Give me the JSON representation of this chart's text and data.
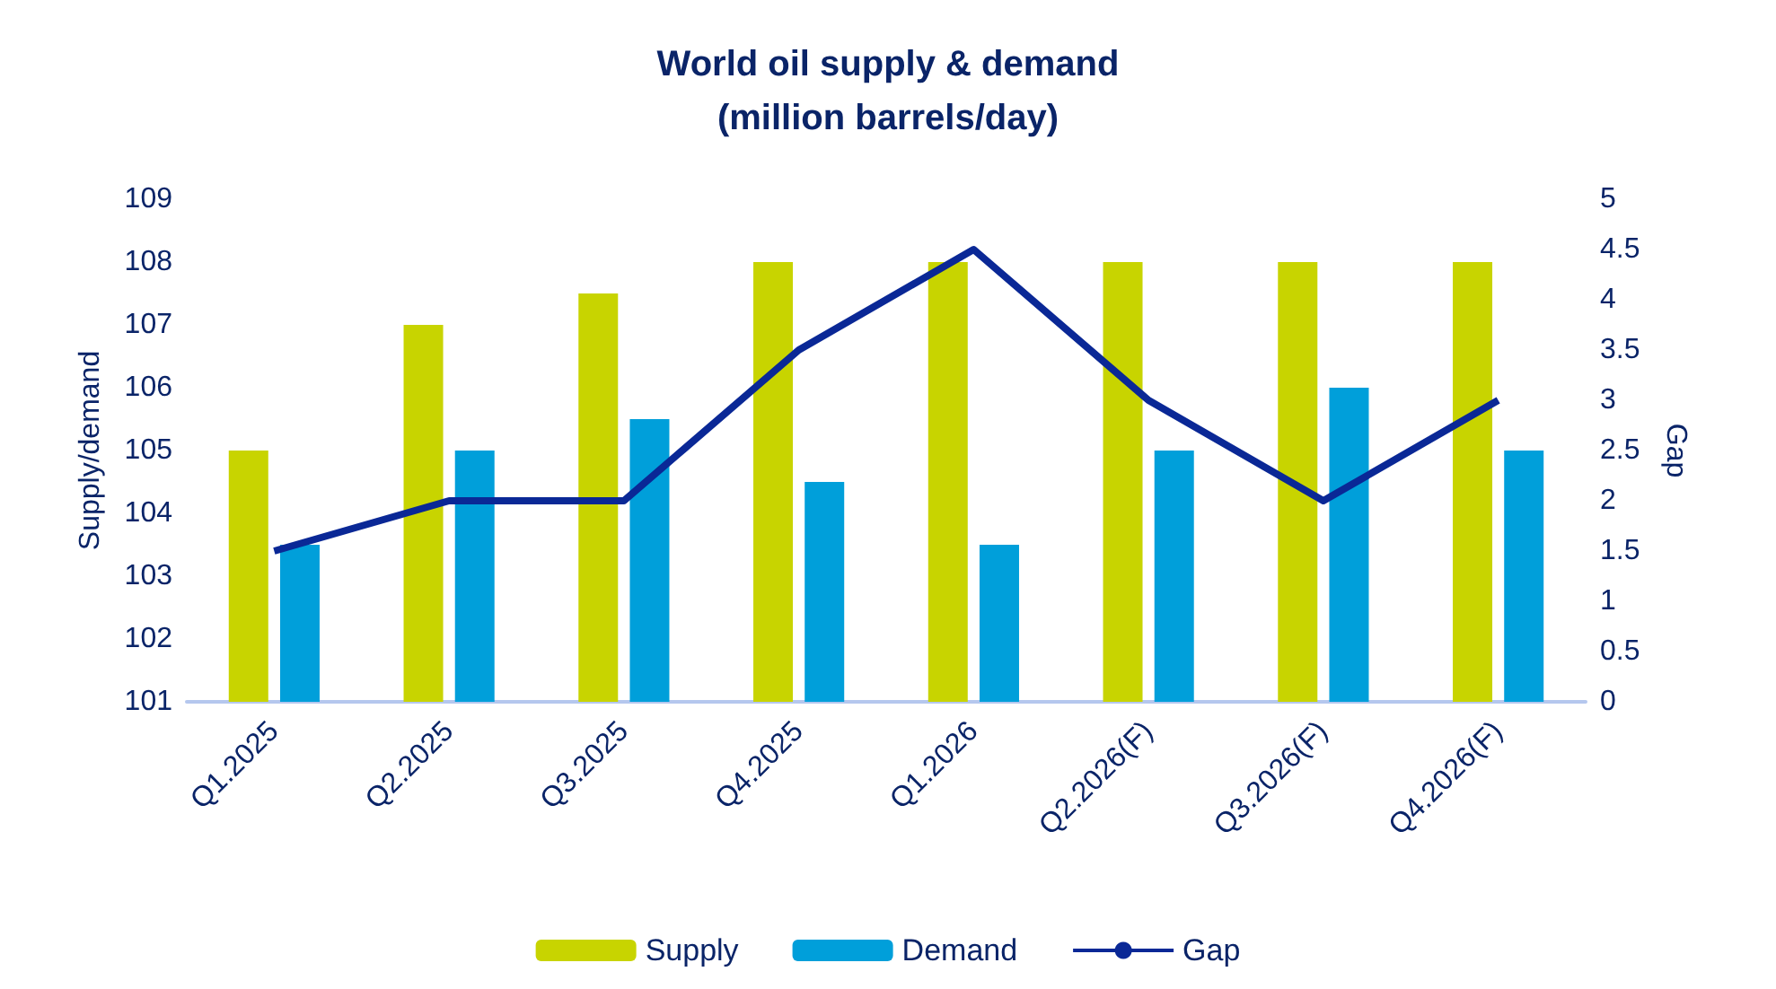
{
  "chart_data": {
    "type": "bar",
    "title": "World oil supply & demand\n(million barrels/day)",
    "ylabel": "Supply/demand",
    "y2label": "Gap",
    "categories": [
      "Q1.2025",
      "Q2.2025",
      "Q3.2025",
      "Q4.2025",
      "Q1.2026",
      "Q2.2026(F)",
      "Q3.2026(F)",
      "Q4.2026(F)"
    ],
    "series": [
      {
        "name": "Supply",
        "color": "#c8d400",
        "values": [
          105,
          107,
          107.5,
          108,
          108,
          108,
          108,
          108
        ]
      },
      {
        "name": "Demand",
        "color": "#009fda",
        "values": [
          103.5,
          105,
          105.5,
          104.5,
          103.5,
          105,
          106,
          105
        ]
      },
      {
        "name": "Gap",
        "type": "line",
        "axis": "y2",
        "color": "#0a2896",
        "values": [
          1.5,
          2,
          2,
          3.5,
          4.5,
          3,
          2,
          3
        ]
      }
    ],
    "ylim": [
      101,
      109
    ],
    "yticks": [
      101,
      102,
      103,
      104,
      105,
      106,
      107,
      108,
      109
    ],
    "y2lim": [
      0,
      5
    ],
    "y2ticks": [
      0,
      0.5,
      1,
      1.5,
      2,
      2.5,
      3,
      3.5,
      4,
      4.5,
      5
    ],
    "grid": false,
    "legend": "bottom",
    "marker": "none"
  }
}
